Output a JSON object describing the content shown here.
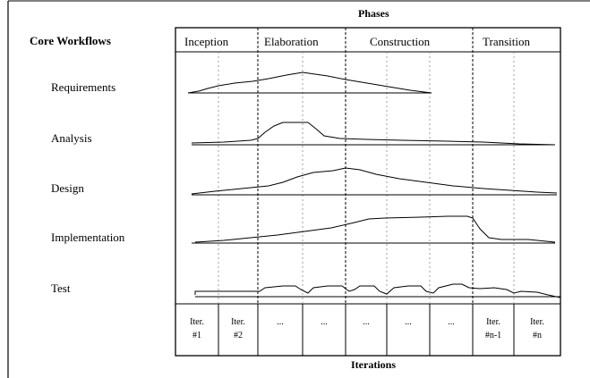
{
  "header": {
    "phases_label": "Phases",
    "core_label": "Core Workflows",
    "iterations_label": "Iterations"
  },
  "phases": [
    {
      "label": "Inception"
    },
    {
      "label": "Elaboration"
    },
    {
      "label": "Construction"
    },
    {
      "label": "Transition"
    }
  ],
  "workflows": [
    {
      "label": "Requirements"
    },
    {
      "label": "Analysis"
    },
    {
      "label": "Design"
    },
    {
      "label": "Implementation"
    },
    {
      "label": "Test"
    }
  ],
  "iterations": [
    {
      "line1": "Iter.",
      "line2": "#1"
    },
    {
      "line1": "Iter.",
      "line2": "#2"
    },
    {
      "line1": "...",
      "line2": ""
    },
    {
      "line1": "...",
      "line2": ""
    },
    {
      "line1": "...",
      "line2": ""
    },
    {
      "line1": "...",
      "line2": ""
    },
    {
      "line1": "...",
      "line2": ""
    },
    {
      "line1": "Iter.",
      "line2": "#n-1"
    },
    {
      "line1": "Iter.",
      "line2": "#n"
    }
  ]
}
